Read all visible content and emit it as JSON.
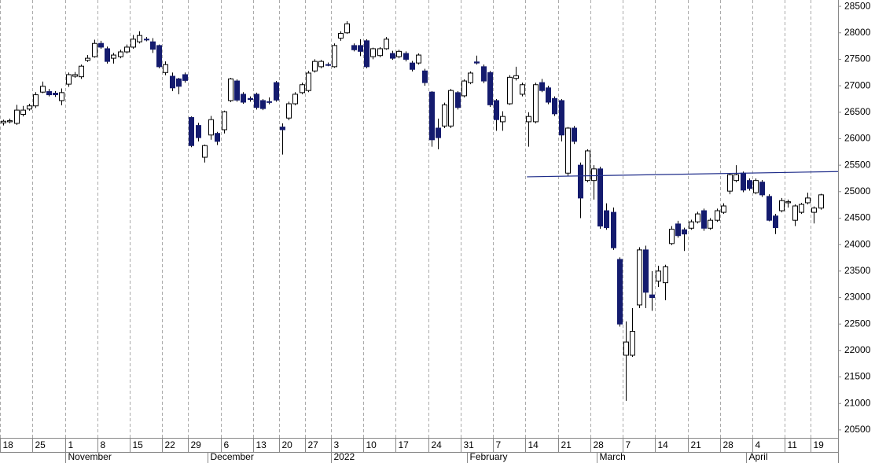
{
  "chart_data": {
    "type": "candlestick",
    "categories": [
      "18",
      null,
      null,
      null,
      null,
      "25",
      null,
      null,
      null,
      null,
      "1",
      null,
      null,
      null,
      null,
      "8",
      null,
      null,
      null,
      null,
      "15",
      null,
      null,
      null,
      null,
      "22",
      null,
      null,
      null,
      "29",
      null,
      null,
      null,
      null,
      "6",
      null,
      null,
      null,
      null,
      "13",
      null,
      null,
      null,
      "20",
      null,
      null,
      null,
      "27",
      null,
      null,
      null,
      "3",
      null,
      null,
      null,
      null,
      "10",
      null,
      null,
      null,
      null,
      "17",
      null,
      null,
      null,
      null,
      "24",
      null,
      null,
      null,
      null,
      "31",
      null,
      null,
      null,
      null,
      "7",
      null,
      null,
      null,
      null,
      "14",
      null,
      null,
      null,
      null,
      "21",
      null,
      null,
      null,
      null,
      "28",
      null,
      null,
      null,
      null,
      "7",
      null,
      null,
      null,
      null,
      "14",
      null,
      null,
      null,
      null,
      "21",
      null,
      null,
      null,
      null,
      "28",
      null,
      null,
      null,
      null,
      "4",
      null,
      null,
      null,
      null,
      "11",
      null,
      null,
      null,
      "19",
      null
    ],
    "months": [
      {
        "label": "November",
        "start": 10
      },
      {
        "label": "December",
        "start": 32
      },
      {
        "label": "2022",
        "start": 51
      },
      {
        "label": "February",
        "start": 72
      },
      {
        "label": "March",
        "start": 92
      },
      {
        "label": "April",
        "start": 115
      }
    ],
    "open": [
      26300,
      26320,
      26290,
      26460,
      26560,
      26620,
      26880,
      26890,
      26860,
      26720,
      27030,
      27180,
      27170,
      27480,
      27550,
      27800,
      27700,
      27520,
      27550,
      27640,
      27730,
      27830,
      27880,
      27830,
      27760,
      27250,
      27180,
      27130,
      27210,
      26400,
      26250,
      25650,
      26070,
      26100,
      26170,
      26720,
      27090,
      26840,
      26760,
      26840,
      26720,
      26700,
      27060,
      26220,
      26390,
      26660,
      26870,
      26910,
      27280,
      27360,
      27400,
      27360,
      27900,
      28000,
      27760,
      27760,
      27850,
      27550,
      27570,
      27700,
      27610,
      27550,
      27610,
      27430,
      27430,
      27280,
      26880,
      26200,
      26240,
      26240,
      26870,
      26810,
      27060,
      27450,
      27360,
      27250,
      26720,
      26320,
      26660,
      27140,
      26840,
      26320,
      26320,
      27060,
      26960,
      26760,
      26720,
      25350,
      26200,
      25500,
      25210,
      25210,
      25430,
      24640,
      24610,
      23720,
      21910,
      21910,
      22860,
      23900,
      23050,
      23310,
      23280,
      24020,
      24390,
      24280,
      24310,
      24430,
      24640,
      24310,
      24460,
      24610,
      25010,
      25210,
      25350,
      25210,
      24980,
      25180,
      24910,
      24540,
      24640,
      24790,
      24460,
      24610,
      24790,
      24610,
      24690
    ],
    "high": [
      26360,
      26380,
      26640,
      26620,
      26660,
      26880,
      27080,
      26940,
      26900,
      26950,
      27250,
      27260,
      27400,
      27580,
      27870,
      27850,
      27740,
      27620,
      27680,
      27780,
      27960,
      28030,
      27920,
      27900,
      27780,
      27460,
      27250,
      27150,
      27250,
      26420,
      26300,
      25890,
      26430,
      26130,
      26530,
      27150,
      27120,
      26880,
      26800,
      26870,
      26750,
      26780,
      27090,
      26290,
      26700,
      26880,
      27060,
      27280,
      27500,
      27490,
      27440,
      27800,
      28030,
      28220,
      27800,
      27880,
      27880,
      27720,
      27730,
      27920,
      27660,
      27680,
      27650,
      27470,
      27610,
      27320,
      26900,
      26380,
      26680,
      26940,
      26900,
      27120,
      27270,
      27570,
      27400,
      27280,
      26750,
      26520,
      27200,
      27360,
      27060,
      26500,
      27060,
      27130,
      27000,
      26800,
      26750,
      26220,
      26240,
      25550,
      25800,
      25500,
      25470,
      24780,
      24700,
      23760,
      22550,
      22800,
      23950,
      23980,
      23500,
      23600,
      23620,
      24350,
      24450,
      24320,
      24470,
      24620,
      24680,
      24500,
      24680,
      24780,
      25350,
      25500,
      25380,
      25250,
      25250,
      25220,
      24950,
      24580,
      24880,
      24850,
      24760,
      24790,
      24980,
      24720,
      24960
    ],
    "low": [
      26250,
      26290,
      26260,
      26420,
      26530,
      26580,
      26860,
      26800,
      26790,
      26630,
      26980,
      27150,
      27130,
      27450,
      27530,
      27700,
      27420,
      27420,
      27520,
      27610,
      27700,
      27800,
      27840,
      27620,
      27330,
      27200,
      26900,
      26840,
      27060,
      25840,
      25950,
      25550,
      25980,
      25880,
      26100,
      26690,
      26700,
      26660,
      26700,
      26550,
      26540,
      26650,
      26700,
      25700,
      26350,
      26630,
      26840,
      26880,
      27250,
      27330,
      27370,
      27340,
      27850,
      27980,
      27650,
      27560,
      27330,
      27500,
      27540,
      27680,
      27490,
      27520,
      27460,
      27270,
      27400,
      27000,
      25850,
      25800,
      26200,
      26200,
      26550,
      26780,
      27030,
      27400,
      27050,
      26600,
      26150,
      26150,
      26640,
      27100,
      26800,
      25850,
      26290,
      26880,
      26650,
      26430,
      25950,
      25300,
      25900,
      24500,
      25180,
      24850,
      24300,
      24280,
      23900,
      22450,
      21050,
      21880,
      22800,
      22800,
      22750,
      23200,
      22950,
      23990,
      24130,
      23880,
      24280,
      24400,
      24260,
      24280,
      24430,
      24580,
      24950,
      25180,
      24990,
      25020,
      24950,
      24900,
      24440,
      24200,
      24610,
      24700,
      24350,
      24580,
      24760,
      24400,
      24660
    ],
    "close": [
      26330,
      26340,
      26540,
      26540,
      26620,
      26830,
      26990,
      26830,
      26830,
      26870,
      27210,
      27210,
      27370,
      27520,
      27800,
      27730,
      27460,
      27580,
      27640,
      27730,
      27880,
      27950,
      27870,
      27690,
      27360,
      27400,
      26960,
      26990,
      27100,
      25870,
      26020,
      25870,
      26360,
      25950,
      26510,
      27130,
      26730,
      26690,
      26740,
      26590,
      26570,
      26690,
      26730,
      26170,
      26660,
      26840,
      27020,
      27240,
      27460,
      27460,
      27390,
      27760,
      27990,
      28170,
      27680,
      27650,
      27360,
      27700,
      27700,
      27880,
      27520,
      27650,
      27500,
      27310,
      27580,
      27060,
      25980,
      26020,
      26640,
      26910,
      26590,
      27090,
      27240,
      27430,
      27090,
      26640,
      26360,
      26420,
      27160,
      27190,
      27020,
      26420,
      27020,
      26910,
      26690,
      26470,
      26070,
      26200,
      25950,
      24880,
      25770,
      25430,
      24350,
      24320,
      23940,
      22500,
      22160,
      22360,
      23900,
      23100,
      23000,
      23500,
      23580,
      24290,
      24170,
      24200,
      24430,
      24580,
      24310,
      24460,
      24640,
      24730,
      25320,
      25320,
      25030,
      25060,
      25210,
      24940,
      24460,
      24320,
      24830,
      24810,
      24730,
      24760,
      24880,
      24690,
      24940
    ],
    "up_color": "#ffffff",
    "down_color": "#141b6e",
    "trend_line": {
      "values": [
        25280,
        25380
      ],
      "color": "#1f2d8a",
      "start": 81
    },
    "ylim": [
      20350,
      28620
    ],
    "yticks": [
      20500,
      21000,
      21500,
      22000,
      22500,
      23000,
      23500,
      24000,
      24500,
      25000,
      25500,
      26000,
      26500,
      27000,
      27500,
      28000,
      28500
    ],
    "grid": true
  }
}
